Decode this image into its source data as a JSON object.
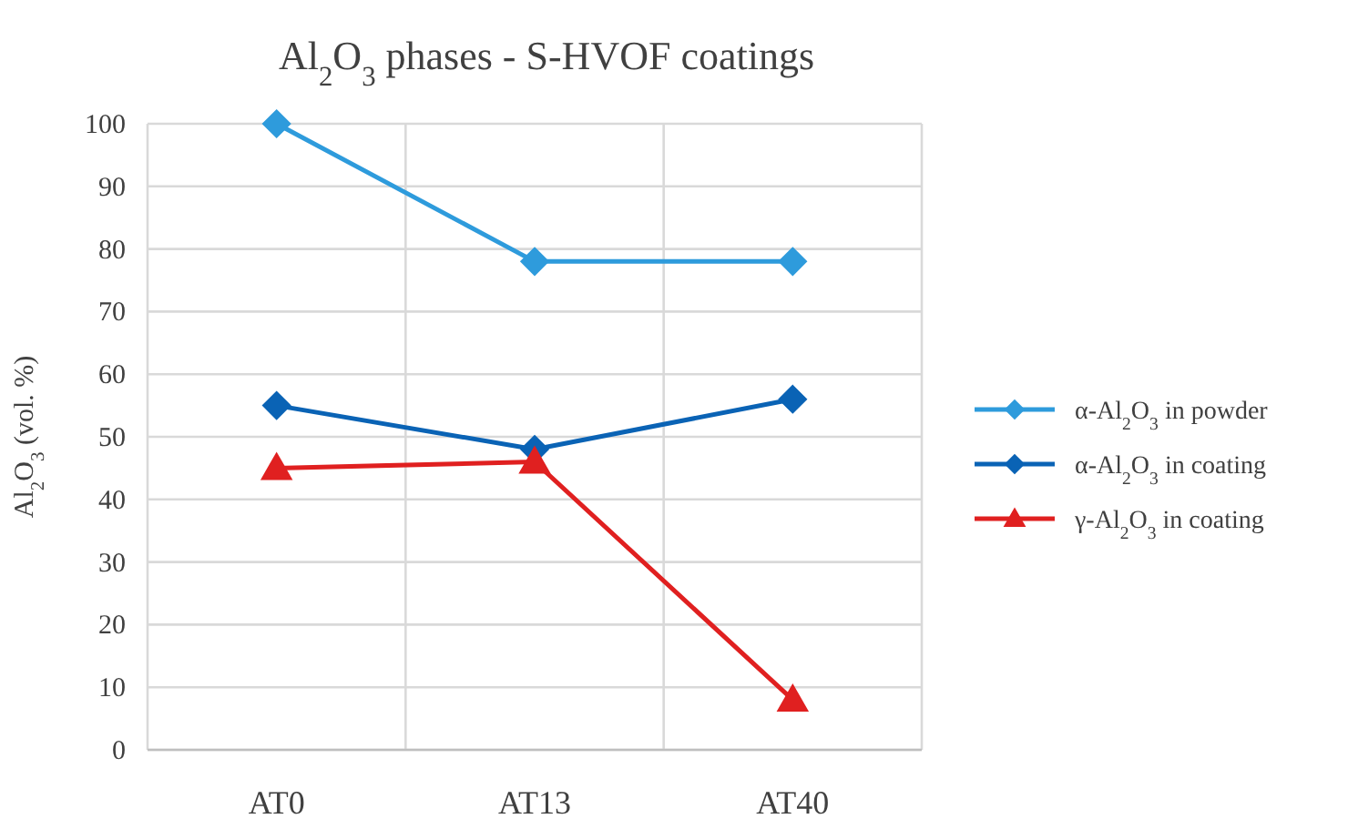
{
  "chart_data": {
    "type": "line",
    "title": "Al$_{2}$O$_{3}$ phases - S-HVOF coatings",
    "ylabel": "Al$_{2}$O$_{3}$ (vol. %)",
    "categories": [
      "AT0",
      "AT13",
      "AT40"
    ],
    "ylim": [
      0,
      100
    ],
    "yticks": [
      0,
      10,
      20,
      30,
      40,
      50,
      60,
      70,
      80,
      90,
      100
    ],
    "grid": true,
    "legend": "right",
    "line_style": "solid",
    "series": [
      {
        "name": "α-Al$_{2}$O$_{3}$ in powder",
        "color": "#2e9bdc",
        "values": [
          100,
          78,
          78
        ],
        "marker": "diamond"
      },
      {
        "name": "α-Al$_{2}$O$_{3}$ in coating",
        "color": "#0a63b5",
        "values": [
          55,
          48,
          56
        ],
        "marker": "diamond"
      },
      {
        "name": "γ-Al$_{2}$O$_{3}$ in coating",
        "color": "#e02020",
        "values": [
          45,
          46,
          8
        ],
        "marker": "triangle"
      }
    ]
  }
}
